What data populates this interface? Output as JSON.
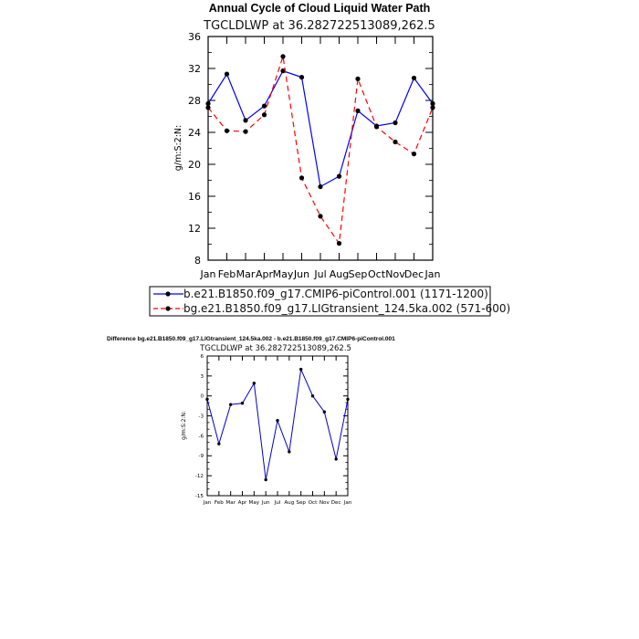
{
  "chart_data": [
    {
      "type": "line",
      "title": "Annual Cycle of Cloud Liquid Water Path",
      "subtitle": "TGCLDLWP at 36.282722513089,262.5",
      "ylabel": "g/m:S:2:N:",
      "xlabel": "",
      "categories": [
        "Jan",
        "Feb",
        "Mar",
        "Apr",
        "May",
        "Jun",
        "Jul",
        "Aug",
        "Sep",
        "Oct",
        "Nov",
        "Dec",
        "Jan"
      ],
      "ylim": [
        8,
        36
      ],
      "yticks": [
        8,
        12,
        16,
        20,
        24,
        28,
        32,
        36
      ],
      "series": [
        {
          "name": "b.e21.B1850.f09_g17.CMIP6-piControl.001 (1171-1200)",
          "color": "#0000ff",
          "dash": "solid",
          "values": [
            27.6,
            31.3,
            25.5,
            27.3,
            31.7,
            30.9,
            17.2,
            18.5,
            26.7,
            24.8,
            25.2,
            30.8,
            27.6
          ]
        },
        {
          "name": "bg.e21.B1850.f09_g17.LIGtransient_124.5ka.002 (571-600)",
          "color": "#ff0000",
          "dash": "dashed",
          "values": [
            27.1,
            24.2,
            24.1,
            26.2,
            33.5,
            18.3,
            13.5,
            10.1,
            30.7,
            24.7,
            22.8,
            21.3,
            27.1
          ]
        }
      ]
    },
    {
      "type": "line",
      "title": "Difference bg.e21.B1850.f09_g17.LIGtransient_124.5ka.002 - b.e21.B1850.f09_g17.CMIP6-piControl.001",
      "subtitle": "TGCLDLWP at 36.282722513089,262.5",
      "ylabel": "g/m:S:2:N:",
      "xlabel": "",
      "categories": [
        "Jan",
        "Feb",
        "Mar",
        "Apr",
        "May",
        "Jun",
        "Jul",
        "Aug",
        "Sep",
        "Oct",
        "Nov",
        "Dec",
        "Jan"
      ],
      "ylim": [
        -15,
        6
      ],
      "yticks": [
        -15,
        -12,
        -9,
        -6,
        -3,
        0,
        3,
        6
      ],
      "series": [
        {
          "name": "Difference",
          "color": "#0000cc",
          "dash": "solid",
          "values": [
            -0.5,
            -7.2,
            -1.3,
            -1.1,
            1.9,
            -12.6,
            -3.7,
            -8.4,
            4.0,
            0.0,
            -2.4,
            -9.5,
            -0.5
          ]
        }
      ]
    }
  ]
}
